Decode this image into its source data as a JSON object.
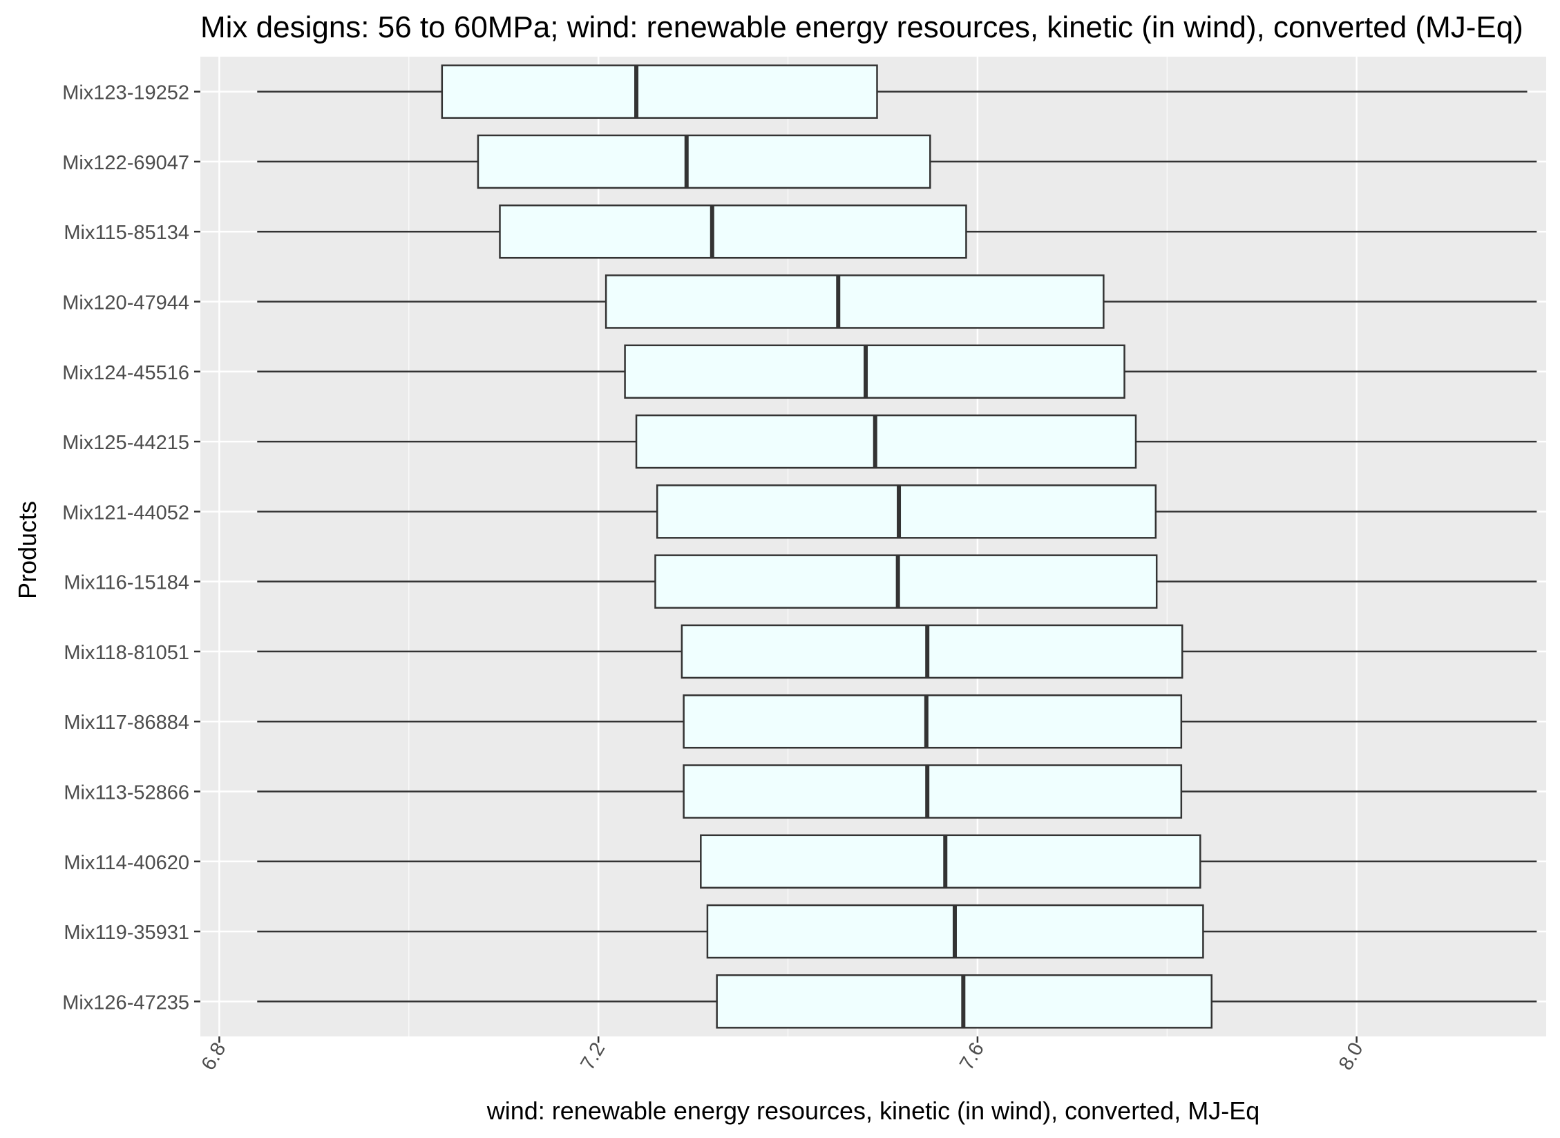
{
  "chart_data": {
    "type": "boxplot",
    "title": "Mix designs: 56 to 60MPa; wind: renewable energy resources, kinetic (in wind), converted (MJ-Eq)",
    "xlabel": "wind: renewable energy resources, kinetic (in wind), converted, MJ-Eq",
    "ylabel": "Products",
    "xlim": [
      6.78,
      8.2
    ],
    "xticks": [
      6.8,
      7.2,
      7.6,
      8.0
    ],
    "xtick_labels": [
      "6.8",
      "7.2",
      "7.6",
      "8.0"
    ],
    "grid": true,
    "box_fill": "#F0FFFF",
    "box_stroke": "#333333",
    "panel_bg": "#EBEBEB",
    "categories": [
      "Mix123-19252",
      "Mix122-69047",
      "Mix115-85134",
      "Mix120-47944",
      "Mix124-45516",
      "Mix125-44215",
      "Mix121-44052",
      "Mix116-15184",
      "Mix118-81051",
      "Mix117-86884",
      "Mix113-52866",
      "Mix114-40620",
      "Mix119-35931",
      "Mix126-47235"
    ],
    "boxes": [
      {
        "min": 6.84,
        "q1": 7.035,
        "median": 7.24,
        "q3": 7.494,
        "max": 8.18
      },
      {
        "min": 6.84,
        "q1": 7.073,
        "median": 7.293,
        "q3": 7.55,
        "max": 8.19
      },
      {
        "min": 6.84,
        "q1": 7.096,
        "median": 7.32,
        "q3": 7.588,
        "max": 8.19
      },
      {
        "min": 6.84,
        "q1": 7.208,
        "median": 7.453,
        "q3": 7.733,
        "max": 8.19
      },
      {
        "min": 6.84,
        "q1": 7.228,
        "median": 7.482,
        "q3": 7.755,
        "max": 8.19
      },
      {
        "min": 6.84,
        "q1": 7.24,
        "median": 7.492,
        "q3": 7.767,
        "max": 8.19
      },
      {
        "min": 6.84,
        "q1": 7.262,
        "median": 7.517,
        "q3": 7.788,
        "max": 8.19
      },
      {
        "min": 6.84,
        "q1": 7.26,
        "median": 7.516,
        "q3": 7.789,
        "max": 8.19
      },
      {
        "min": 6.84,
        "q1": 7.288,
        "median": 7.547,
        "q3": 7.816,
        "max": 8.19
      },
      {
        "min": 6.84,
        "q1": 7.29,
        "median": 7.546,
        "q3": 7.815,
        "max": 8.19
      },
      {
        "min": 6.84,
        "q1": 7.29,
        "median": 7.547,
        "q3": 7.815,
        "max": 8.19
      },
      {
        "min": 6.84,
        "q1": 7.308,
        "median": 7.566,
        "q3": 7.835,
        "max": 8.19
      },
      {
        "min": 6.84,
        "q1": 7.315,
        "median": 7.576,
        "q3": 7.838,
        "max": 8.19
      },
      {
        "min": 6.84,
        "q1": 7.325,
        "median": 7.585,
        "q3": 7.847,
        "max": 8.19
      }
    ]
  }
}
